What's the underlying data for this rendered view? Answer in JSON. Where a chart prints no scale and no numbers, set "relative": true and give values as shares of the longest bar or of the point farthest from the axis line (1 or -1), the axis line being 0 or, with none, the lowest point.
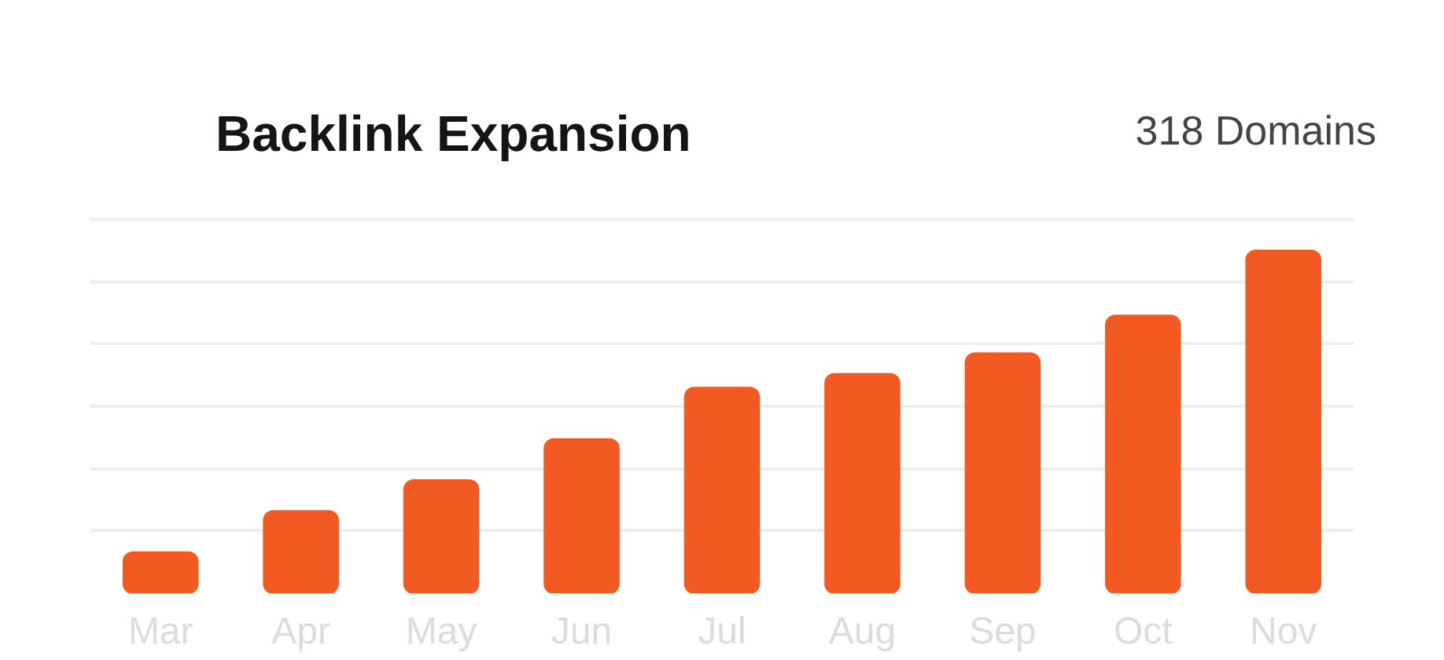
{
  "chart_data": {
    "type": "bar",
    "title": "Backlink Expansion",
    "annotations": [
      "318 Domains"
    ],
    "relative": true,
    "grid": "y",
    "categories": [
      "Mar",
      "Apr",
      "May",
      "Jun",
      "Jul",
      "Aug",
      "Sep",
      "Oct",
      "Nov"
    ],
    "values": [
      0.12,
      0.24,
      0.33,
      0.45,
      0.6,
      0.64,
      0.7,
      0.81,
      1
    ],
    "color": "#f35a22"
  }
}
